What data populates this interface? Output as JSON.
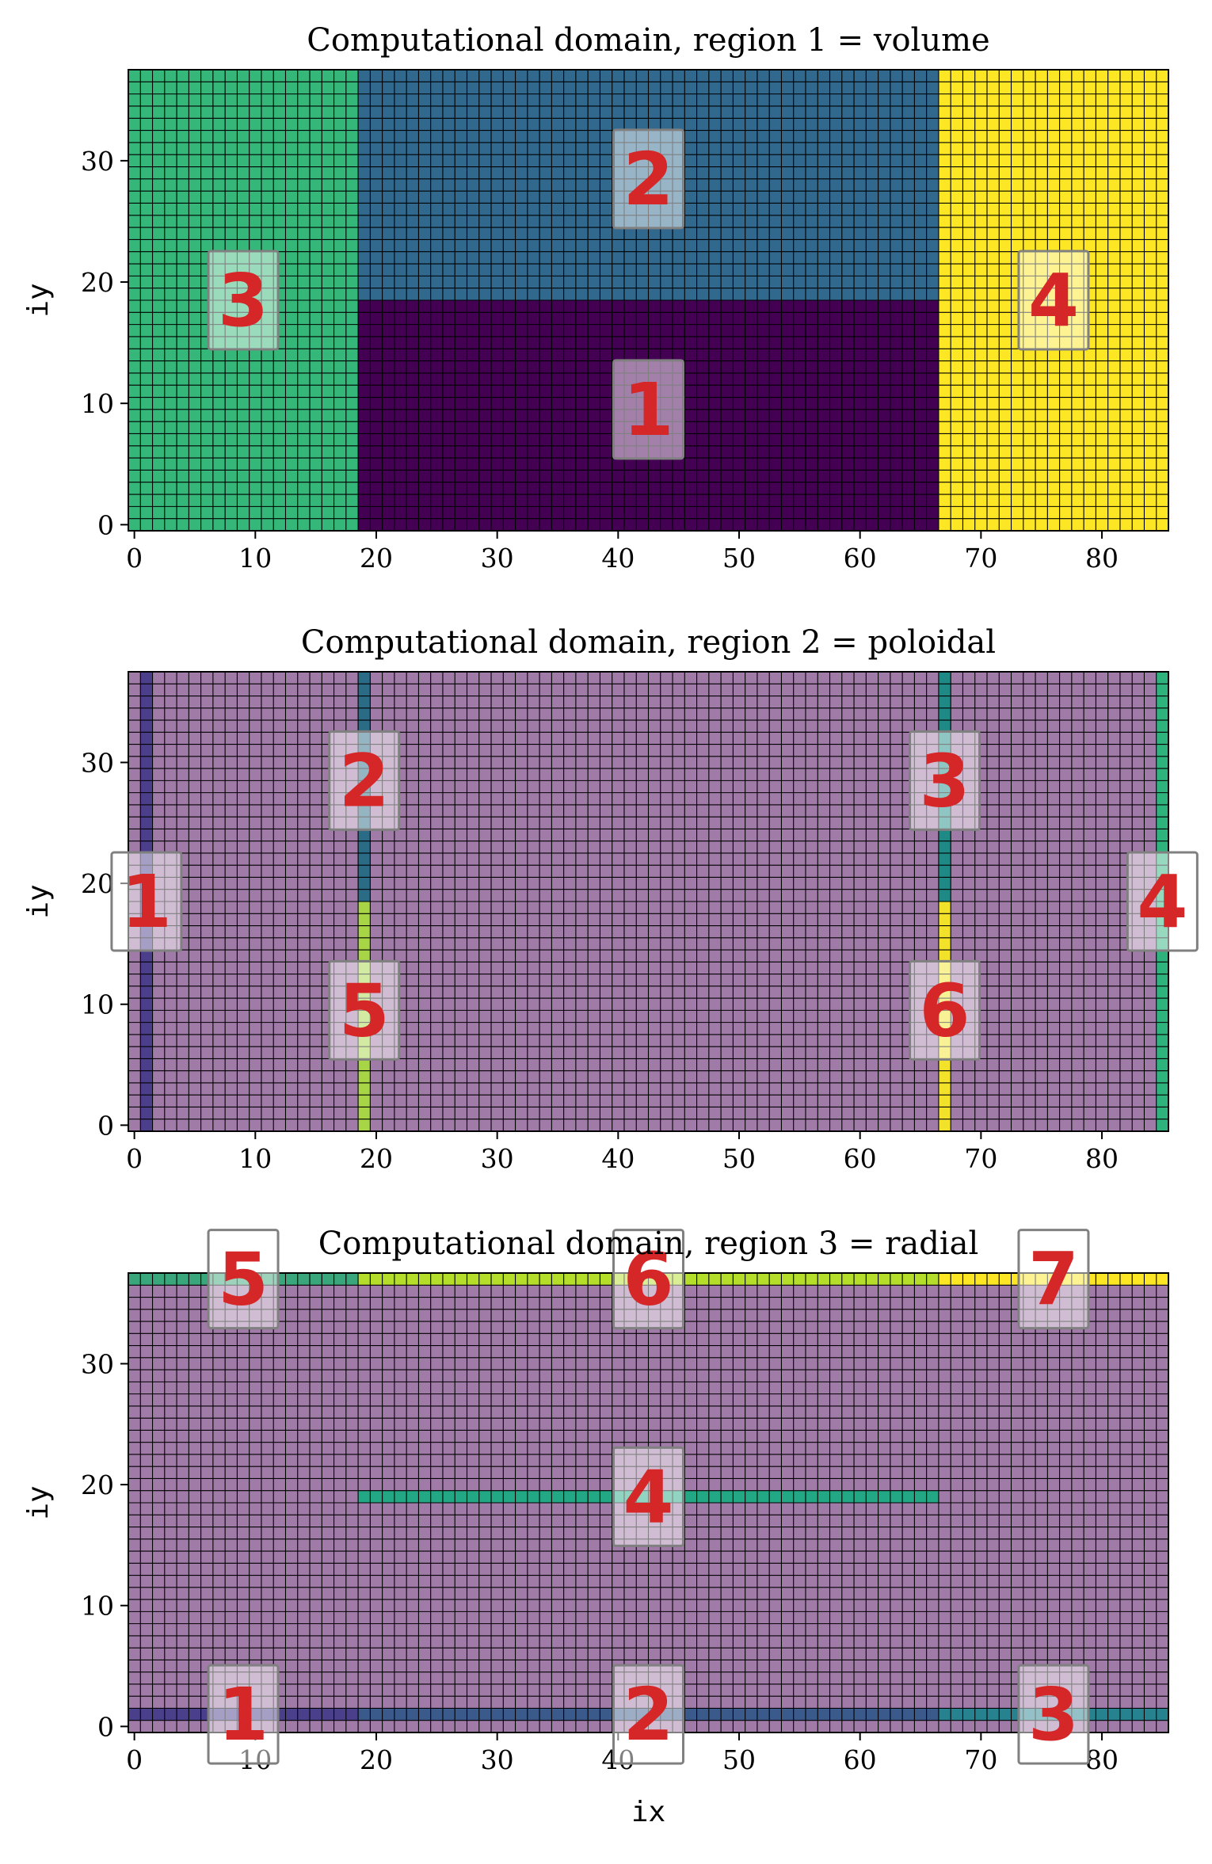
{
  "chart_data": [
    {
      "type": "heatmap",
      "title": "Computational domain, region 1 = volume",
      "ylabel": "iy",
      "xlabel": "",
      "xlim": [
        -0.5,
        85.5
      ],
      "ylim": [
        -0.5,
        37.5
      ],
      "xticks": [
        0,
        10,
        20,
        30,
        40,
        50,
        60,
        70,
        80
      ],
      "yticks": [
        0,
        10,
        20,
        30
      ],
      "regions": [
        {
          "id": "1",
          "ix": [
            19,
            66
          ],
          "iy": [
            0,
            18
          ],
          "color": "#440154",
          "alpha": 1
        },
        {
          "id": "2",
          "ix": [
            19,
            66
          ],
          "iy": [
            19,
            37
          ],
          "color": "#31688e",
          "alpha": 1
        },
        {
          "id": "3",
          "ix": [
            0,
            18
          ],
          "iy": [
            0,
            37
          ],
          "color": "#35b779",
          "alpha": 1
        },
        {
          "id": "4",
          "ix": [
            67,
            85
          ],
          "iy": [
            0,
            37
          ],
          "color": "#fde725",
          "alpha": 1
        }
      ],
      "labels": [
        {
          "text": "1",
          "ix": 42.5,
          "iy": 9.5
        },
        {
          "text": "2",
          "ix": 42.5,
          "iy": 28.5
        },
        {
          "text": "3",
          "ix": 9,
          "iy": 18.5
        },
        {
          "text": "4",
          "ix": 76,
          "iy": 18.5
        }
      ]
    },
    {
      "type": "heatmap",
      "title": "Computational domain, region 2 = poloidal",
      "ylabel": "iy",
      "xlabel": "",
      "xlim": [
        -0.5,
        85.5
      ],
      "ylim": [
        -0.5,
        37.5
      ],
      "xticks": [
        0,
        10,
        20,
        30,
        40,
        50,
        60,
        70,
        80
      ],
      "yticks": [
        0,
        10,
        20,
        30
      ],
      "background": "#a17ba8",
      "regions": [
        {
          "id": "1",
          "ix": [
            1,
            1
          ],
          "iy": [
            0,
            37
          ],
          "color": "#4b3f8c",
          "alpha": 1
        },
        {
          "id": "2",
          "ix": [
            19,
            19
          ],
          "iy": [
            19,
            37
          ],
          "color": "#2a6b86",
          "alpha": 1
        },
        {
          "id": "5",
          "ix": [
            19,
            19
          ],
          "iy": [
            0,
            18
          ],
          "color": "#a7d545",
          "alpha": 1
        },
        {
          "id": "3",
          "ix": [
            67,
            67
          ],
          "iy": [
            19,
            37
          ],
          "color": "#1f8a85",
          "alpha": 1
        },
        {
          "id": "6",
          "ix": [
            67,
            67
          ],
          "iy": [
            0,
            18
          ],
          "color": "#f2e32a",
          "alpha": 1
        },
        {
          "id": "4",
          "ix": [
            85,
            85
          ],
          "iy": [
            0,
            37
          ],
          "color": "#2eb37d",
          "alpha": 1
        }
      ],
      "labels": [
        {
          "text": "1",
          "ix": 1,
          "iy": 18.5
        },
        {
          "text": "2",
          "ix": 19,
          "iy": 28.5
        },
        {
          "text": "3",
          "ix": 67,
          "iy": 28.5
        },
        {
          "text": "4",
          "ix": 85,
          "iy": 18.5
        },
        {
          "text": "5",
          "ix": 19,
          "iy": 9.5
        },
        {
          "text": "6",
          "ix": 67,
          "iy": 9.5
        }
      ]
    },
    {
      "type": "heatmap",
      "title": "Computational domain, region 3 = radial",
      "ylabel": "iy",
      "xlabel": "ix",
      "xlim": [
        -0.5,
        85.5
      ],
      "ylim": [
        -0.5,
        37.5
      ],
      "xticks": [
        0,
        10,
        20,
        30,
        40,
        50,
        60,
        70,
        80
      ],
      "yticks": [
        0,
        10,
        20,
        30
      ],
      "background": "#a17ba8",
      "regions": [
        {
          "id": "1",
          "ix": [
            0,
            18
          ],
          "iy": [
            1,
            1
          ],
          "color": "#4a3f8b",
          "alpha": 1
        },
        {
          "id": "2",
          "ix": [
            19,
            66
          ],
          "iy": [
            1,
            1
          ],
          "color": "#3a5a8c",
          "alpha": 1
        },
        {
          "id": "3",
          "ix": [
            67,
            85
          ],
          "iy": [
            1,
            1
          ],
          "color": "#26828e",
          "alpha": 1
        },
        {
          "id": "4",
          "ix": [
            19,
            66
          ],
          "iy": [
            19,
            19
          ],
          "color": "#22a884",
          "alpha": 1
        },
        {
          "id": "5",
          "ix": [
            0,
            18
          ],
          "iy": [
            37,
            37
          ],
          "color": "#3aa67b",
          "alpha": 1
        },
        {
          "id": "6",
          "ix": [
            19,
            66
          ],
          "iy": [
            37,
            37
          ],
          "color": "#b5de2b",
          "alpha": 1
        },
        {
          "id": "7",
          "ix": [
            67,
            85
          ],
          "iy": [
            37,
            37
          ],
          "color": "#fde725",
          "alpha": 1
        }
      ],
      "labels": [
        {
          "text": "1",
          "ix": 9,
          "iy": 1
        },
        {
          "text": "2",
          "ix": 42.5,
          "iy": 1
        },
        {
          "text": "3",
          "ix": 76,
          "iy": 1
        },
        {
          "text": "4",
          "ix": 42.5,
          "iy": 19
        },
        {
          "text": "5",
          "ix": 9,
          "iy": 37
        },
        {
          "text": "6",
          "ix": 42.5,
          "iy": 37
        },
        {
          "text": "7",
          "ix": 76,
          "iy": 37
        }
      ]
    }
  ],
  "colors": {
    "grid_line": "#000000",
    "label_text": "#d62728",
    "label_box_fill": "#ffffff",
    "label_box_edge": "#808080"
  }
}
